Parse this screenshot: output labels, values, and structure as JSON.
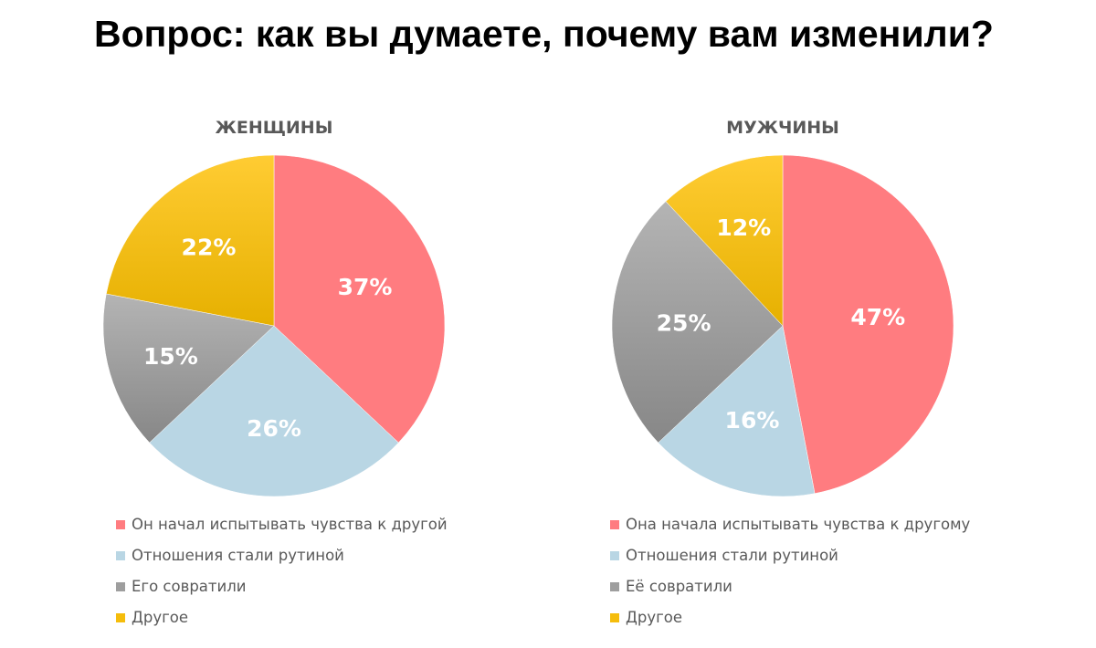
{
  "title": "Вопрос: как вы думаете, почему вам изменили?",
  "chart_data": [
    {
      "type": "pie",
      "title": "ЖЕНЩИНЫ",
      "categories": [
        "Он начал испытывать чувства к другой",
        "Отношения стали рутиной",
        "Его совратили",
        "Другое"
      ],
      "values": [
        37,
        26,
        15,
        22
      ],
      "labels": [
        "37%",
        "26%",
        "15%",
        "22%"
      ],
      "colors": [
        "#ff7c80",
        "#b9d6e4",
        "#9e9e9e",
        "#f5bd0c"
      ],
      "legend": "bottom"
    },
    {
      "type": "pie",
      "title": "МУЖЧИНЫ",
      "categories": [
        "Она начала испытывать чувства к другому",
        "Отношения стали рутиной",
        "Её совратили",
        "Другое"
      ],
      "values": [
        47,
        16,
        25,
        12
      ],
      "labels": [
        "47%",
        "16%",
        "25%",
        "12%"
      ],
      "colors": [
        "#ff7c80",
        "#b9d6e4",
        "#9e9e9e",
        "#f5bd0c"
      ],
      "legend": "bottom"
    }
  ]
}
